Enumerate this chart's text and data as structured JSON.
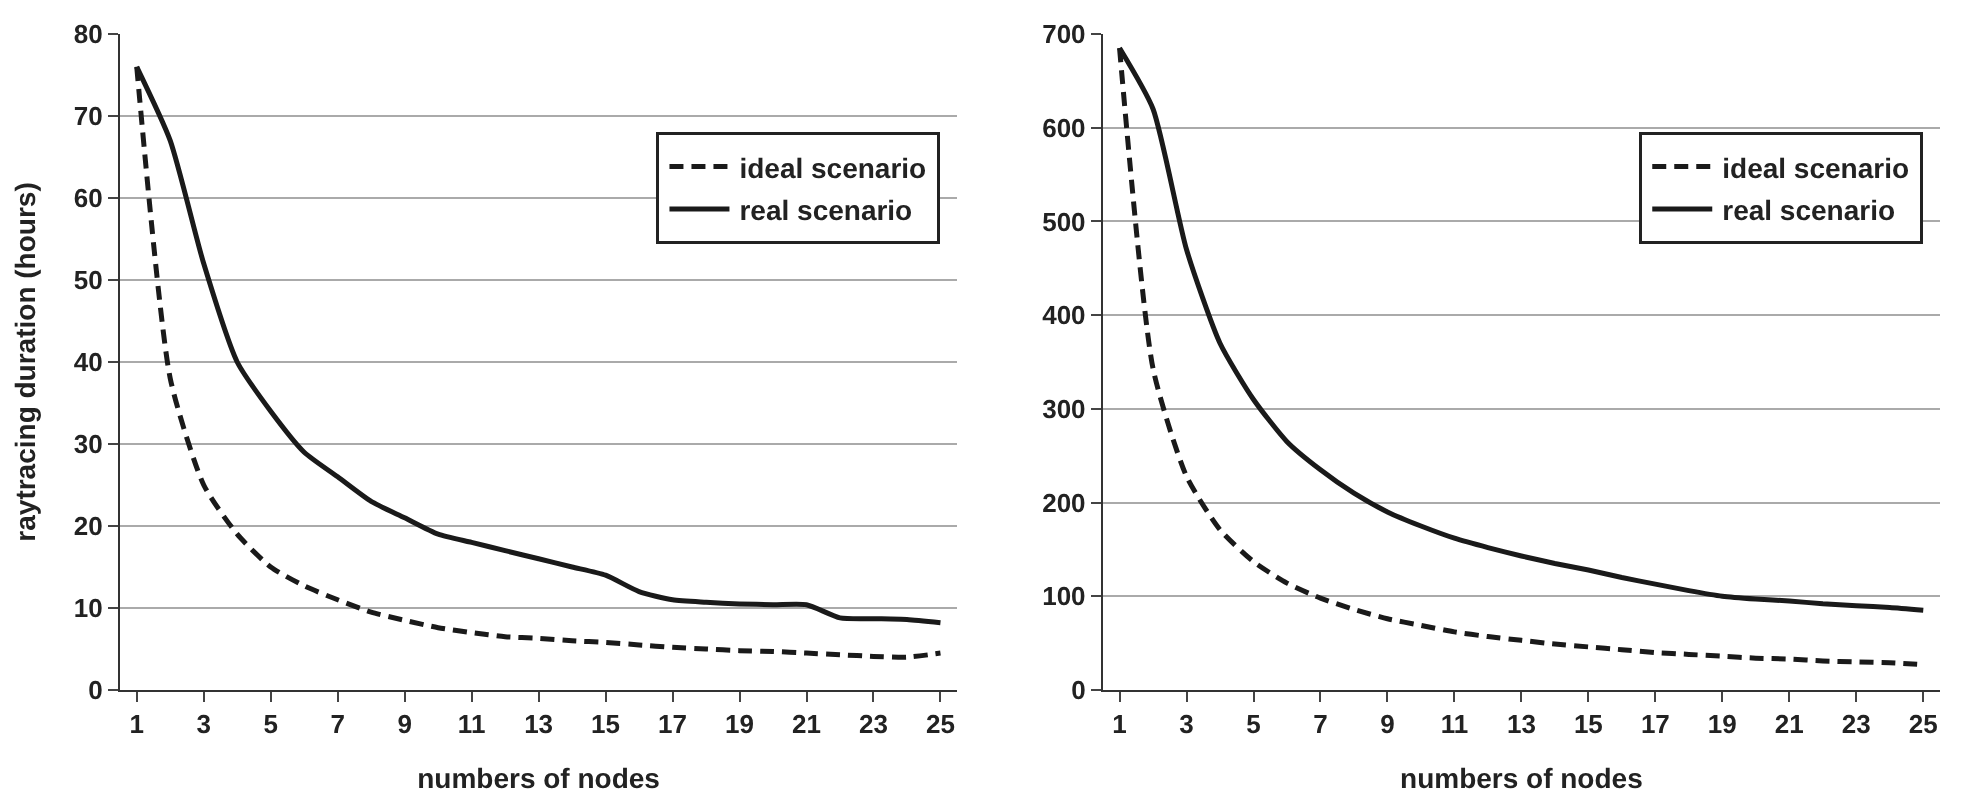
{
  "chart_data": [
    {
      "type": "line",
      "xlabel": "numbers of nodes",
      "ylabel": "raytracing duration (hours)",
      "x": [
        1,
        2,
        3,
        4,
        5,
        6,
        7,
        8,
        9,
        10,
        11,
        12,
        13,
        14,
        15,
        16,
        17,
        18,
        19,
        20,
        21,
        22,
        23,
        24,
        25
      ],
      "xlim": [
        0.5,
        25.5
      ],
      "xticks": [
        1,
        3,
        5,
        7,
        9,
        11,
        13,
        15,
        17,
        19,
        21,
        23,
        25
      ],
      "ylim": [
        0,
        80
      ],
      "yticks": [
        0,
        10,
        20,
        30,
        40,
        50,
        60,
        70,
        80
      ],
      "grid": "y",
      "legend": "top right",
      "series": [
        {
          "name": "ideal scenario",
          "color": "#1a1a1a",
          "line_style": "dashed",
          "values": [
            76,
            38,
            25,
            19,
            15,
            12.7,
            11,
            9.5,
            8.5,
            7.6,
            7,
            6.5,
            6.3,
            6,
            5.8,
            5.5,
            5.2,
            5,
            4.8,
            4.7,
            4.5,
            4.3,
            4.1,
            4,
            4.5
          ]
        },
        {
          "name": "real scenario",
          "color": "#1a1a1a",
          "line_style": "solid",
          "values": [
            76,
            67,
            52,
            40,
            34,
            29,
            26,
            23,
            21,
            19,
            18,
            17,
            16,
            15,
            14,
            12,
            11,
            10.7,
            10.5,
            10.4,
            10.4,
            8.8,
            8.7,
            8.6,
            8.2
          ]
        }
      ]
    },
    {
      "type": "line",
      "xlabel": "numbers of nodes",
      "x": [
        1,
        2,
        3,
        4,
        5,
        6,
        7,
        8,
        9,
        10,
        11,
        12,
        13,
        14,
        15,
        16,
        17,
        18,
        19,
        20,
        21,
        22,
        23,
        24,
        25
      ],
      "xlim": [
        0.5,
        25.5
      ],
      "xticks": [
        1,
        3,
        5,
        7,
        9,
        11,
        13,
        15,
        17,
        19,
        21,
        23,
        25
      ],
      "ylim": [
        0,
        700
      ],
      "yticks": [
        0,
        100,
        200,
        300,
        400,
        500,
        600,
        700
      ],
      "grid": "y",
      "legend": "top right",
      "series": [
        {
          "name": "ideal scenario",
          "color": "#1a1a1a",
          "line_style": "dashed",
          "values": [
            685,
            343,
            228,
            171,
            137,
            114,
            98,
            86,
            76,
            69,
            62,
            57,
            53,
            49,
            46,
            43,
            40,
            38,
            36,
            34,
            33,
            31,
            30,
            29,
            27
          ]
        },
        {
          "name": "real scenario",
          "color": "#1a1a1a",
          "line_style": "solid",
          "values": [
            685,
            620,
            470,
            370,
            310,
            265,
            235,
            210,
            190,
            175,
            162,
            152,
            143,
            135,
            128,
            120,
            113,
            106,
            100,
            97,
            95,
            92,
            90,
            88,
            85
          ]
        }
      ]
    }
  ]
}
